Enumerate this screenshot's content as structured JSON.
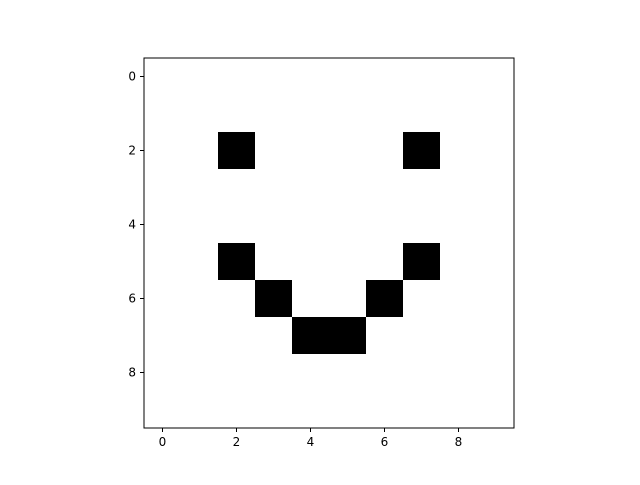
{
  "chart_data": {
    "type": "heatmap",
    "title": "",
    "xlabel": "",
    "ylabel": "",
    "xlim": [
      -0.5,
      9.5
    ],
    "ylim": [
      9.5,
      -0.5
    ],
    "x_ticks": [
      0,
      2,
      4,
      6,
      8
    ],
    "y_ticks": [
      0,
      2,
      4,
      6,
      8
    ],
    "x_tick_labels": [
      "0",
      "2",
      "4",
      "6",
      "8"
    ],
    "y_tick_labels": [
      "0",
      "2",
      "4",
      "6",
      "8"
    ],
    "grid": false,
    "colormap": "binary",
    "colors": {
      "zero": "#ffffff",
      "one": "#000000"
    },
    "matrix": [
      [
        0,
        0,
        0,
        0,
        0,
        0,
        0,
        0,
        0,
        0
      ],
      [
        0,
        0,
        0,
        0,
        0,
        0,
        0,
        0,
        0,
        0
      ],
      [
        0,
        0,
        1,
        0,
        0,
        0,
        0,
        1,
        0,
        0
      ],
      [
        0,
        0,
        0,
        0,
        0,
        0,
        0,
        0,
        0,
        0
      ],
      [
        0,
        0,
        0,
        0,
        0,
        0,
        0,
        0,
        0,
        0
      ],
      [
        0,
        0,
        1,
        0,
        0,
        0,
        0,
        1,
        0,
        0
      ],
      [
        0,
        0,
        0,
        1,
        0,
        0,
        1,
        0,
        0,
        0
      ],
      [
        0,
        0,
        0,
        0,
        1,
        1,
        0,
        0,
        0,
        0
      ],
      [
        0,
        0,
        0,
        0,
        0,
        0,
        0,
        0,
        0,
        0
      ],
      [
        0,
        0,
        0,
        0,
        0,
        0,
        0,
        0,
        0,
        0
      ]
    ]
  }
}
